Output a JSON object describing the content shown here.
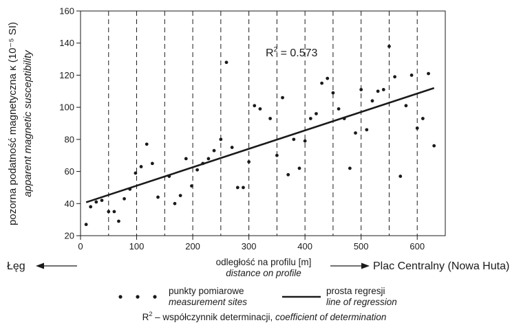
{
  "chart_data": {
    "type": "scatter",
    "ylabel": "pozorna podatność magnetyczna κ (10⁻⁵ SI)",
    "ylabel_en": "apparent magnetic susceptibility",
    "xlabel": "odległość na profilu [m]",
    "xlabel_en": "distance on profile",
    "xlim": [
      0,
      650
    ],
    "ylim": [
      20,
      160
    ],
    "x_ticks": [
      0,
      100,
      200,
      300,
      400,
      500,
      600
    ],
    "y_ticks": [
      20,
      40,
      60,
      80,
      100,
      120,
      140,
      160
    ],
    "vertical_dashed_lines_at": [
      50,
      100,
      150,
      200,
      250,
      300,
      350,
      400,
      450,
      500,
      550,
      600,
      650
    ],
    "annotation": {
      "base": "R",
      "sup": "2",
      "rest": " = 0.573"
    },
    "regression_line": {
      "x": [
        10,
        630
      ],
      "y": [
        40.8,
        112
      ]
    },
    "points": [
      [
        10,
        27
      ],
      [
        18,
        38
      ],
      [
        28,
        41
      ],
      [
        38,
        42
      ],
      [
        50,
        35
      ],
      [
        60,
        35
      ],
      [
        68,
        29
      ],
      [
        78,
        43
      ],
      [
        88,
        49
      ],
      [
        98,
        59
      ],
      [
        108,
        63
      ],
      [
        118,
        77
      ],
      [
        128,
        65
      ],
      [
        138,
        44
      ],
      [
        158,
        57
      ],
      [
        168,
        40
      ],
      [
        178,
        45
      ],
      [
        188,
        68
      ],
      [
        198,
        51
      ],
      [
        208,
        61
      ],
      [
        218,
        65
      ],
      [
        228,
        68
      ],
      [
        238,
        73
      ],
      [
        250,
        80
      ],
      [
        260,
        128
      ],
      [
        270,
        75
      ],
      [
        280,
        50
      ],
      [
        290,
        50
      ],
      [
        300,
        66
      ],
      [
        310,
        101
      ],
      [
        320,
        99
      ],
      [
        338,
        93
      ],
      [
        350,
        70
      ],
      [
        360,
        106
      ],
      [
        370,
        58
      ],
      [
        380,
        80
      ],
      [
        390,
        62
      ],
      [
        400,
        79
      ],
      [
        410,
        93
      ],
      [
        420,
        96
      ],
      [
        430,
        115
      ],
      [
        440,
        118
      ],
      [
        450,
        109
      ],
      [
        460,
        99
      ],
      [
        470,
        93
      ],
      [
        480,
        62
      ],
      [
        490,
        84
      ],
      [
        500,
        111
      ],
      [
        510,
        86
      ],
      [
        520,
        104
      ],
      [
        530,
        110
      ],
      [
        540,
        111
      ],
      [
        550,
        138
      ],
      [
        560,
        119
      ],
      [
        570,
        57
      ],
      [
        580,
        101
      ],
      [
        590,
        120
      ],
      [
        600,
        87
      ],
      [
        610,
        93
      ],
      [
        620,
        121
      ],
      [
        630,
        76
      ]
    ],
    "color": "#1a1a1a"
  },
  "direction": {
    "left": "Łęg",
    "right": "Plac Centralny (Nowa Huta)"
  },
  "legend": {
    "points_label": "punkty pomiarowe",
    "points_label_en": "measurement sites",
    "line_label": "prosta regresji",
    "line_label_en": "line of regression"
  },
  "footnote": {
    "base": "R",
    "sup": "2",
    "text": " – współczynnik determinacji, ",
    "text_en": "coefficient of determination"
  }
}
